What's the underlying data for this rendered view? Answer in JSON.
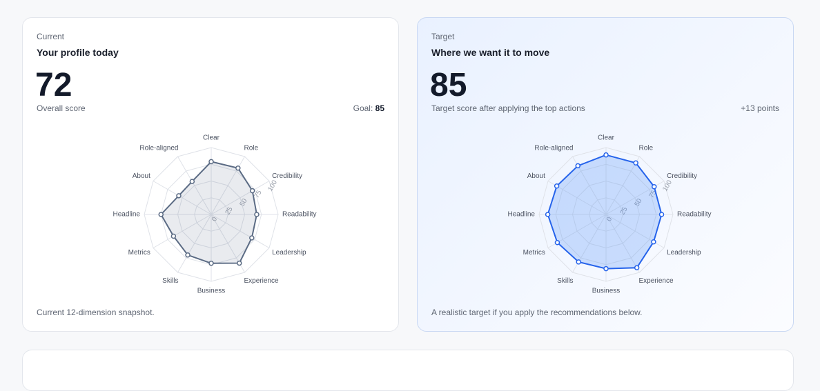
{
  "cards": [
    {
      "eyebrow": "Current",
      "title": "Your profile today",
      "score": 72,
      "score_label": "Overall score",
      "goal_label": "Goal:",
      "goal": 85,
      "footer": "Current 12-dimension snapshot."
    },
    {
      "eyebrow": "Target",
      "title": "Where we want it to move",
      "score": 85,
      "score_label": "Target score after applying the top actions",
      "delta": "+13 points",
      "footer": "A realistic target if you apply the recommendations below."
    }
  ],
  "chart_data": [
    {
      "type": "radar",
      "categories": [
        "Clear",
        "Role",
        "Credibility",
        "Readability",
        "Leadership",
        "Experience",
        "Business",
        "Skills",
        "Metrics",
        "Headline",
        "About",
        "Role-aligned"
      ],
      "values": [
        79,
        80,
        71,
        68,
        70,
        84,
        73,
        70,
        65,
        75,
        56,
        57
      ],
      "color": "#5b6b84",
      "fill": "rgba(100,116,139,0.14)",
      "rlim": [
        0,
        100
      ],
      "rticks": [
        0,
        25,
        50,
        75,
        100
      ],
      "grid": true
    },
    {
      "type": "radar",
      "categories": [
        "Clear",
        "Role",
        "Credibility",
        "Readability",
        "Leadership",
        "Experience",
        "Business",
        "Skills",
        "Metrics",
        "Headline",
        "About",
        "Role-aligned"
      ],
      "values": [
        89,
        89,
        83,
        83,
        82,
        92,
        81,
        82,
        84,
        87,
        85,
        84
      ],
      "color": "#2563eb",
      "fill": "rgba(59,130,246,0.24)",
      "rlim": [
        0,
        100
      ],
      "rticks": [
        0,
        25,
        50,
        75,
        100
      ],
      "grid": true
    }
  ]
}
